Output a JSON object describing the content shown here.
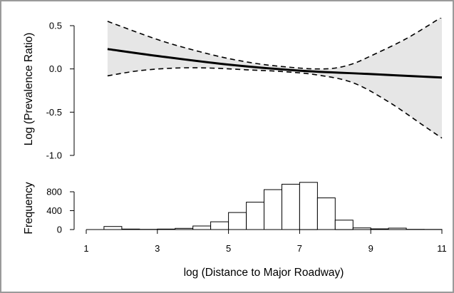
{
  "chart_data": [
    {
      "type": "line",
      "ylabel": "Log (Prevalence Ratio)",
      "ylim": [
        -1.0,
        0.5
      ],
      "yticks": [
        "0.5",
        "0.0",
        "-0.5",
        "-1.0"
      ],
      "xlim": [
        1,
        11
      ],
      "grid": false,
      "band_fill": "#e6e6e6",
      "series": [
        {
          "style": "solid",
          "x": [
            1.6,
            3,
            5,
            7,
            9,
            11
          ],
          "y": [
            0.23,
            0.15,
            0.05,
            -0.02,
            -0.06,
            -0.1
          ]
        },
        {
          "style": "dashed",
          "x": [
            1.6,
            3,
            4,
            5,
            6,
            7,
            7.5,
            8,
            8.5,
            9,
            10,
            11
          ],
          "y": [
            0.55,
            0.34,
            0.22,
            0.12,
            0.05,
            0.01,
            0.0,
            0.01,
            0.06,
            0.15,
            0.35,
            0.6
          ]
        },
        {
          "style": "dashed",
          "x": [
            1.6,
            2.5,
            3.5,
            4.5,
            5.5,
            6.5,
            7.5,
            8.5,
            9.5,
            10.5,
            11
          ],
          "y": [
            -0.08,
            -0.02,
            0.01,
            0.01,
            -0.01,
            -0.03,
            -0.07,
            -0.16,
            -0.38,
            -0.66,
            -0.8
          ]
        }
      ]
    },
    {
      "type": "bar",
      "ylabel": "Frequency",
      "xlabel": "log (Distance to Major Roadway)",
      "ylim": [
        0,
        1050
      ],
      "yticks": [
        "0",
        "400",
        "800"
      ],
      "xlim": [
        1,
        11
      ],
      "xticks": [
        "1",
        "3",
        "5",
        "7",
        "9",
        "11"
      ],
      "bin_edges": [
        1.5,
        2,
        2.5,
        3,
        3.5,
        4,
        4.5,
        5,
        5.5,
        6,
        6.5,
        7,
        7.5,
        8,
        8.5,
        9,
        9.5,
        10,
        10.5,
        11
      ],
      "values": [
        65,
        10,
        5,
        10,
        25,
        75,
        165,
        360,
        580,
        845,
        960,
        1000,
        670,
        200,
        35,
        15,
        30,
        5,
        3
      ]
    }
  ]
}
